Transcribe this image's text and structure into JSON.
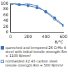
{
  "chart_data": {
    "type": "line",
    "x_label": "θ/°C",
    "xlim": [
      0,
      600
    ],
    "xticks": [
      0,
      200,
      400,
      600
    ],
    "ylim": [
      0,
      100
    ],
    "yticks": [
      0,
      20,
      40,
      60,
      80,
      100
    ],
    "grid": false,
    "series": [
      {
        "name": "quenched and tempered 26 CrMo 4 steel with initial tensile strength Rm = 1100 N/mm²",
        "color": "#3a6fb0",
        "marker": "square",
        "line_style": "solid",
        "x": [
          20,
          100,
          200,
          300,
          400,
          500,
          600
        ],
        "values": [
          100,
          97,
          92,
          85,
          72,
          50,
          25
        ]
      },
      {
        "name": "normalized X2 43 carbon steel tensile strength Rm = 500 N/mm²",
        "color": "#3a6fb0",
        "marker": "open_square",
        "line_style": "solid",
        "x": [
          20,
          100,
          200,
          300,
          400,
          500,
          600
        ],
        "values": [
          100,
          95,
          98,
          90,
          70,
          45,
          22
        ]
      }
    ]
  }
}
